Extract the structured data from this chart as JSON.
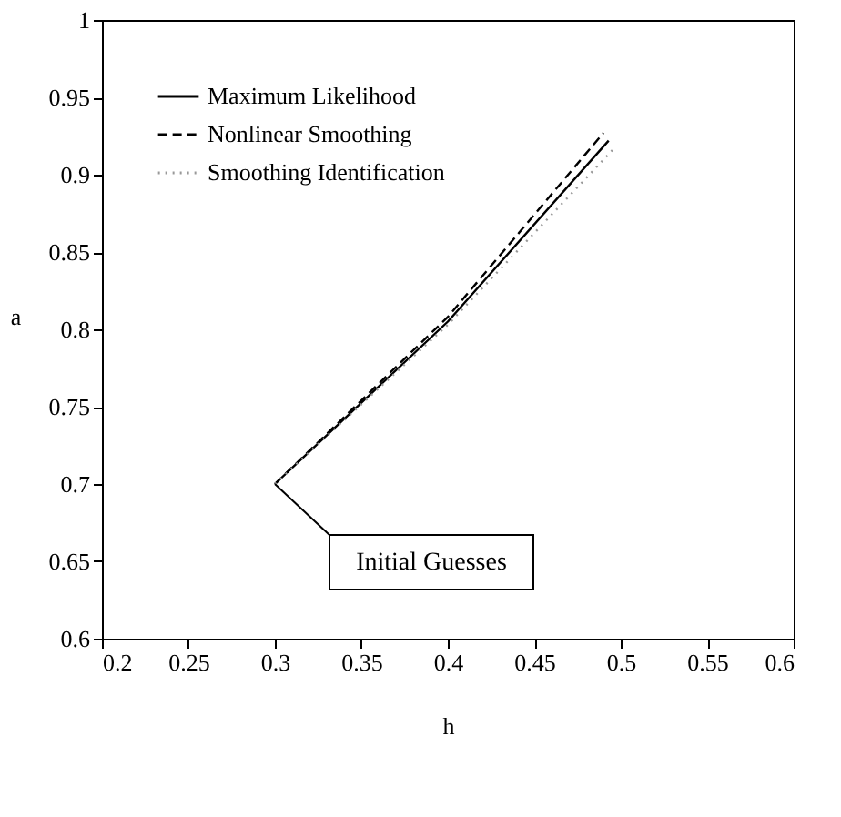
{
  "chart_data": {
    "type": "line",
    "xlabel": "h",
    "ylabel": "a",
    "xlim": [
      0.2,
      0.6
    ],
    "xticks": [
      0.2,
      0.25,
      0.3,
      0.35,
      0.4,
      0.45,
      0.5,
      0.55,
      0.6
    ],
    "ylim": [
      0.6,
      1
    ],
    "yticks": [
      0.6,
      0.65,
      0.7,
      0.75,
      0.8,
      0.85,
      0.9,
      0.95,
      1
    ],
    "grid": false,
    "legend": "top left",
    "series": [
      {
        "name": "Maximum Likelihood",
        "color": "#000000",
        "line_style": "solid",
        "x": [
          0.3,
          0.4,
          0.493
        ],
        "values": [
          0.7,
          0.805,
          0.922
        ]
      },
      {
        "name": "Nonlinear Smoothing",
        "color": "#000000",
        "line_style": "dashed",
        "x": [
          0.3,
          0.4,
          0.49
        ],
        "values": [
          0.7,
          0.808,
          0.927
        ]
      },
      {
        "name": "Smoothing Identification",
        "color": "#999999",
        "line_style": "dotted",
        "x": [
          0.3,
          0.4,
          0.497
        ],
        "values": [
          0.7,
          0.803,
          0.918
        ]
      }
    ],
    "annotations": [
      {
        "text": "Initial Guesses",
        "x": 0.3,
        "y": 0.7
      }
    ]
  }
}
